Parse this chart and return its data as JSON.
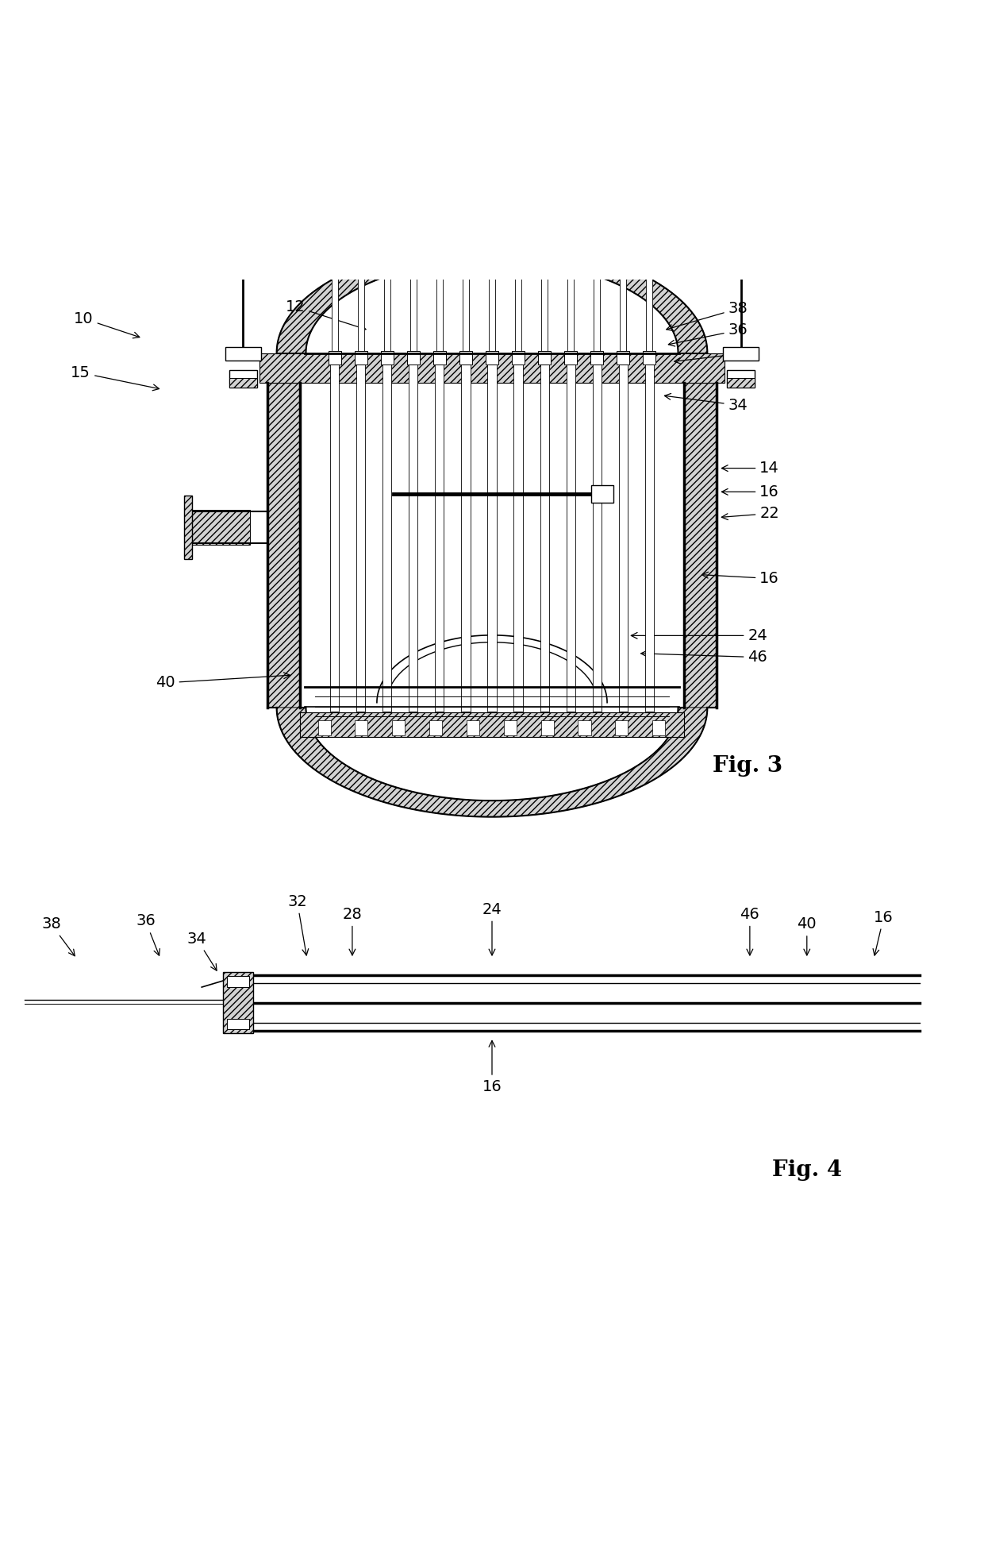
{
  "fig_width": 12.4,
  "fig_height": 19.43,
  "bg_color": "#ffffff",
  "line_color": "#000000",
  "fig3_label": "Fig. 3",
  "fig4_label": "Fig. 4",
  "label_fontsize": 20,
  "ann_fontsize": 14
}
